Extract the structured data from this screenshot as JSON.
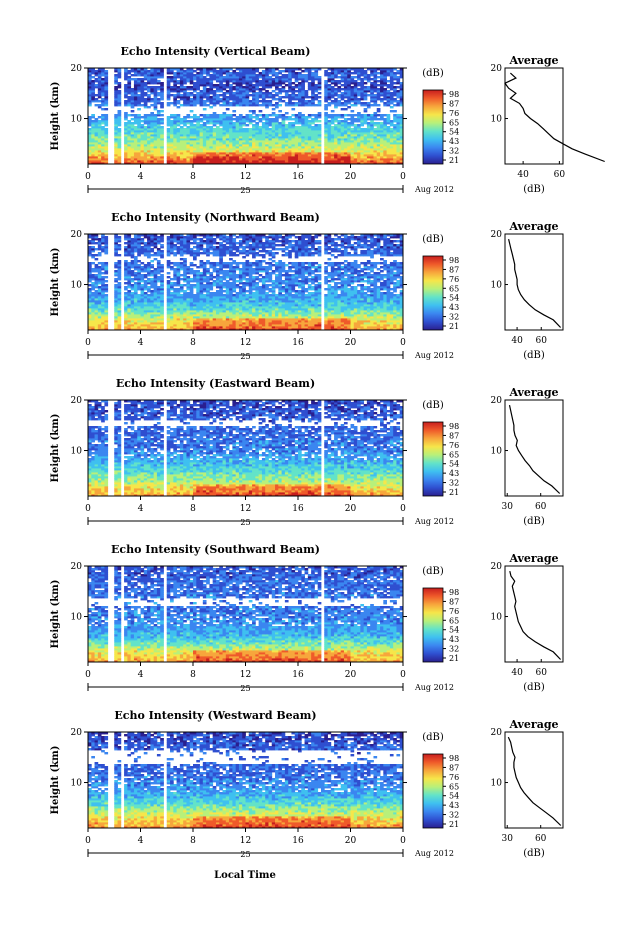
{
  "figure": {
    "x_axis_label": "Local Time",
    "date_label": "Aug 2012",
    "day_label": "25",
    "colorbar_unit": "(dB)",
    "colorbar_ticks": [
      "98",
      "87",
      "76",
      "65",
      "54",
      "43",
      "32",
      "21"
    ],
    "colormap": [
      "#2a1f8f",
      "#2f4fd0",
      "#3b86f0",
      "#3fc0f0",
      "#63e3c8",
      "#b8f07a",
      "#f6e64a",
      "#f7a63c",
      "#ef5a2a",
      "#c81e1e"
    ],
    "height_label": "Height (km)",
    "height_ticks": [
      "20",
      "10"
    ],
    "time_ticks": [
      "0",
      "4",
      "8",
      "12",
      "16",
      "20",
      "0"
    ],
    "average_title": "Average",
    "average_unit": "(dB)"
  },
  "chart_data": [
    {
      "type": "heatmap",
      "title": "Echo Intensity (Vertical Beam)",
      "xlabel": "",
      "ylabel": "Height (km)",
      "xlim": [
        0,
        24
      ],
      "ylim": [
        1,
        20
      ],
      "clim": [
        21,
        98
      ],
      "column_gaps_hours": [
        [
          1.6,
          2.0
        ],
        [
          2.4,
          2.8
        ],
        [
          5.8,
          6.1
        ],
        [
          17.8,
          18.1
        ]
      ],
      "blank_band_km": [
        [
          10.8,
          12.3
        ]
      ],
      "profile_km": [
        1.5,
        3,
        4,
        5,
        6,
        7,
        8,
        9,
        10,
        11,
        12,
        13,
        14,
        15,
        16,
        17,
        18,
        19
      ],
      "profile_db": [
        85,
        74,
        67,
        62,
        57,
        54,
        51,
        48,
        44,
        41,
        40,
        38,
        33,
        36,
        32,
        30,
        36,
        33
      ]
    },
    {
      "type": "heatmap",
      "title": "Echo Intensity (Northward Beam)",
      "xlabel": "",
      "ylabel": "Height (km)",
      "xlim": [
        0,
        24
      ],
      "ylim": [
        1,
        20
      ],
      "clim": [
        21,
        98
      ],
      "column_gaps_hours": [
        [
          1.6,
          2.0
        ],
        [
          2.4,
          2.8
        ],
        [
          5.8,
          6.1
        ],
        [
          17.8,
          18.1
        ]
      ],
      "blank_band_km": [
        [
          14.5,
          15.5
        ]
      ],
      "profile_km": [
        1.5,
        3,
        4,
        5,
        6,
        7,
        8,
        9,
        10,
        11,
        12,
        13,
        14,
        15,
        16,
        17,
        18,
        19
      ],
      "profile_db": [
        76,
        70,
        62,
        55,
        50,
        46,
        43,
        41,
        40,
        40,
        39,
        38,
        38,
        37,
        36,
        35,
        34,
        33
      ]
    },
    {
      "type": "heatmap",
      "title": "Echo Intensity (Eastward Beam)",
      "xlabel": "",
      "ylabel": "Height (km)",
      "xlim": [
        0,
        24
      ],
      "ylim": [
        1,
        20
      ],
      "clim": [
        21,
        98
      ],
      "column_gaps_hours": [
        [
          1.6,
          2.0
        ],
        [
          2.4,
          2.8
        ],
        [
          5.8,
          6.1
        ],
        [
          17.8,
          18.1
        ]
      ],
      "blank_band_km": [
        [
          15.0,
          16.0
        ]
      ],
      "profile_km": [
        1.5,
        3,
        4,
        5,
        6,
        7,
        8,
        9,
        10,
        11,
        12,
        13,
        14,
        15,
        16,
        17,
        18,
        19
      ],
      "profile_db": [
        77,
        70,
        63,
        58,
        53,
        50,
        46,
        43,
        40,
        38,
        39,
        37,
        36,
        36,
        35,
        34,
        33,
        32
      ]
    },
    {
      "type": "heatmap",
      "title": "Echo Intensity (Southward Beam)",
      "xlabel": "",
      "ylabel": "Height (km)",
      "xlim": [
        0,
        24
      ],
      "ylim": [
        1,
        20
      ],
      "clim": [
        21,
        98
      ],
      "column_gaps_hours": [
        [
          1.6,
          2.0
        ],
        [
          2.4,
          2.8
        ],
        [
          5.8,
          6.1
        ],
        [
          17.8,
          18.1
        ]
      ],
      "blank_band_km": [
        [
          12.0,
          13.5
        ]
      ],
      "profile_km": [
        1.5,
        3,
        4,
        5,
        6,
        7,
        8,
        9,
        10,
        11,
        12,
        13,
        14,
        15,
        16,
        17,
        18,
        19
      ],
      "profile_db": [
        76,
        70,
        62,
        55,
        49,
        45,
        43,
        41,
        40,
        39,
        38,
        39,
        38,
        37,
        36,
        38,
        35,
        34
      ]
    },
    {
      "type": "heatmap",
      "title": "Echo Intensity (Westward Beam)",
      "xlabel": "Local Time",
      "ylabel": "Height (km)",
      "xlim": [
        0,
        24
      ],
      "ylim": [
        1,
        20
      ],
      "clim": [
        21,
        98
      ],
      "column_gaps_hours": [
        [
          1.6,
          2.0
        ],
        [
          2.4,
          2.8
        ],
        [
          5.8,
          6.1
        ]
      ],
      "blank_band_km": [
        [
          13.5,
          16.5
        ]
      ],
      "profile_km": [
        1.5,
        3,
        4,
        5,
        6,
        7,
        8,
        9,
        10,
        11,
        12,
        13,
        14,
        15,
        16,
        17,
        18,
        19
      ],
      "profile_db": [
        78,
        71,
        65,
        59,
        53,
        49,
        45,
        42,
        40,
        38,
        37,
        36,
        36,
        37,
        35,
        34,
        33,
        31
      ]
    }
  ],
  "average_axes": [
    {
      "xticks": [
        "40",
        "60"
      ],
      "xlim": [
        30,
        62
      ]
    },
    {
      "xticks": [
        "40",
        "60"
      ],
      "xlim": [
        30,
        78
      ]
    },
    {
      "xticks": [
        "30",
        "60"
      ],
      "xlim": [
        28,
        80
      ]
    },
    {
      "xticks": [
        "40",
        "60"
      ],
      "xlim": [
        30,
        78
      ]
    },
    {
      "xticks": [
        "30",
        "60"
      ],
      "xlim": [
        28,
        80
      ]
    }
  ]
}
